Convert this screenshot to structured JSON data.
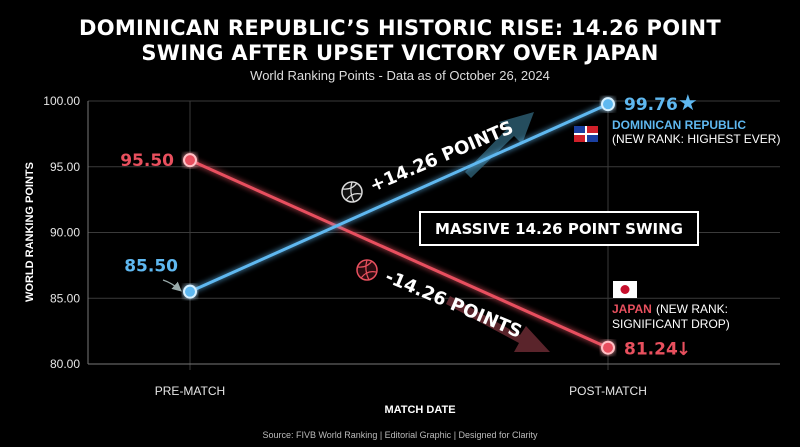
{
  "header": {
    "title_line1": "DOMINICAN REPUBLIC’S HISTORIC RISE: 14.26 POINT",
    "title_line2": "SWING AFTER UPSET VICTORY OVER JAPAN",
    "subtitle": "World Ranking Points - Data as of October 26, 2024"
  },
  "footer": {
    "source": "Source: FIVB World Ranking | Editorial Graphic | Designed for Clarity"
  },
  "colors": {
    "dominican": "#5fb8f0",
    "japan": "#e8505e",
    "grid": "#3a3a3a"
  },
  "chart_data": {
    "type": "line",
    "categories": [
      "PRE-MATCH",
      "POST-MATCH"
    ],
    "xlabel": "MATCH DATE",
    "ylabel": "WORLD RANKING POINTS",
    "ylim": [
      80,
      100
    ],
    "yticks": [
      "100.00",
      "95.00",
      "90.00",
      "85.00",
      "80.00"
    ],
    "grid": true,
    "series": [
      {
        "key": "dom",
        "values": [
          85.5,
          99.76
        ],
        "labels": [
          "85.50",
          "99.76"
        ],
        "team_label": "DOMINICAN REPUBLIC",
        "note": "(NEW RANK: HIGHEST EVER)",
        "change": "+14.26 POINTS",
        "end_marker": "★",
        "flag_icon": "dominican-flag-icon"
      },
      {
        "key": "jpn",
        "values": [
          95.5,
          81.24
        ],
        "labels": [
          "95.50",
          "81.24"
        ],
        "team_label": "JAPAN",
        "note_part1": "(NEW RANK:",
        "note_part2": "SIGNIFICANT DROP)",
        "change": "-14.26 POINTS",
        "end_marker": "↓",
        "flag_icon": "japan-flag-icon"
      }
    ],
    "annotation": "MASSIVE 14.26 POINT SWING"
  }
}
